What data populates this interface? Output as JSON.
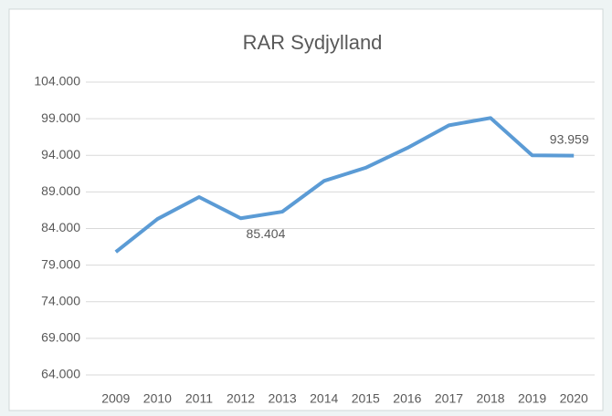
{
  "chart_data": {
    "type": "line",
    "title": "RAR Sydjylland",
    "categories": [
      "2009",
      "2010",
      "2011",
      "2012",
      "2013",
      "2014",
      "2015",
      "2016",
      "2017",
      "2018",
      "2019",
      "2020"
    ],
    "series": [
      {
        "color": "#5b9bd5",
        "values": [
          80800,
          85300,
          88300,
          85404,
          86300,
          90500,
          92300,
          95000,
          98100,
          99100,
          94000,
          93959
        ],
        "value_labels": [
          null,
          null,
          null,
          "85.404",
          null,
          null,
          null,
          null,
          null,
          null,
          null,
          "93.959"
        ]
      }
    ],
    "ylim": [
      64000,
      104000
    ],
    "yticks": [
      {
        "value": 64000,
        "label": "64.000"
      },
      {
        "value": 69000,
        "label": "69.000"
      },
      {
        "value": 74000,
        "label": "74.000"
      },
      {
        "value": 79000,
        "label": "79.000"
      },
      {
        "value": 84000,
        "label": "84.000"
      },
      {
        "value": 89000,
        "label": "89.000"
      },
      {
        "value": 94000,
        "label": "94.000"
      },
      {
        "value": 99000,
        "label": "99.000"
      },
      {
        "value": 104000,
        "label": "104.000"
      }
    ],
    "grid": true
  }
}
